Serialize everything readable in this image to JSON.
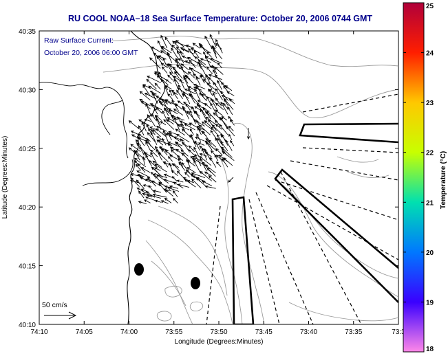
{
  "chart_data": {
    "type": "vector-field-map",
    "title": "RU COOL  NOAA–18  Sea Surface Temperature:  October 20, 2006 0744 GMT",
    "annotation": [
      "Raw Surface Current:",
      "October 20, 2006 06:00 GMT"
    ],
    "xlabel": "Longitude (Degrees:Minutes)",
    "ylabel": "Latitude (Degrees:Minutes)",
    "x_ticks": [
      "74:10",
      "74:05",
      "74:00",
      "73:55",
      "73:50",
      "73:45",
      "73:40",
      "73:35",
      "73:3"
    ],
    "y_ticks": [
      "40:35",
      "40:30",
      "40:25",
      "40:20",
      "40:15",
      "40:10"
    ],
    "xlim": [
      "74:10",
      "73:30"
    ],
    "ylim": [
      "40:10",
      "40:35"
    ],
    "scale_vector_label": "50 cm/s",
    "colorbar": {
      "label": "Temperature (°C)",
      "ticks": [
        "25",
        "24",
        "23",
        "22",
        "21",
        "20",
        "19",
        "18"
      ],
      "range": [
        18,
        25
      ],
      "colormap": [
        "#b0003a",
        "#ff1e00",
        "#ffc800",
        "#c8ff00",
        "#00e0b0",
        "#0078ff",
        "#3a00ff",
        "#ff88e8"
      ]
    },
    "grid": false
  }
}
